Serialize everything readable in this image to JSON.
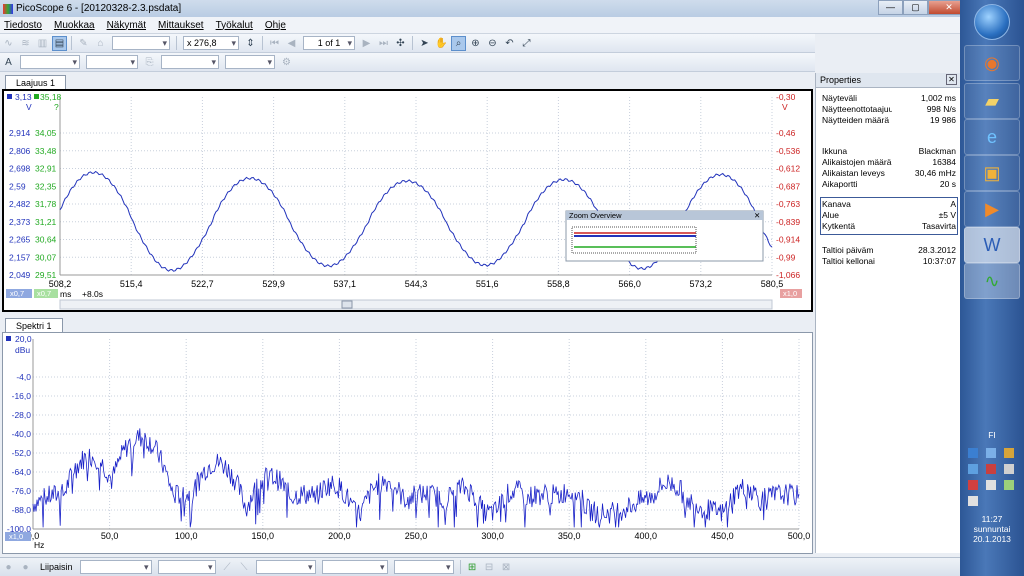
{
  "window": {
    "title": "PicoScope 6 - [20120328-2.3.psdata]"
  },
  "menu": [
    "Tiedosto",
    "Muokkaa",
    "Näkymät",
    "Mittaukset",
    "Työkalut",
    "Ohje"
  ],
  "toolbar": {
    "zoom_value": "x 276,8",
    "page_value": "1 of 1"
  },
  "scope": {
    "tab_label": "Laajuus 1",
    "channel_a_top": "3,13",
    "channel_b_top": "35,18",
    "channel_c_top": "-0,30",
    "left_unit": "V",
    "green_unit": "?",
    "right_unit": "V",
    "x_unit": "ms",
    "x_offset": "+8.0s",
    "x_zoom": "x0,7",
    "x_zoom_green": "x0,7",
    "right_zoom": "x1,0",
    "yaxis_blue": [
      "2,914",
      "2,806",
      "2,698",
      "2,59",
      "2,482",
      "2,373",
      "2,265",
      "2,157",
      "2,049"
    ],
    "yaxis_green": [
      "34,05",
      "33,48",
      "32,91",
      "32,35",
      "31,78",
      "31,21",
      "30,64",
      "30,07",
      "29,51"
    ],
    "yaxis_red": [
      "-0,46",
      "-0,536",
      "-0,612",
      "-0,687",
      "-0,763",
      "-0,839",
      "-0,914",
      "-0,99",
      "-1,066"
    ],
    "xaxis": [
      "508,2",
      "515,4",
      "522,7",
      "529,9",
      "537,1",
      "544,3",
      "551,6",
      "558,8",
      "566,0",
      "573,2",
      "580,5"
    ],
    "zoom_overview_title": "Zoom Overview",
    "waveform_color": "#2233bb"
  },
  "spectrum": {
    "tab_label": "Spektri 1",
    "top_value": "20,0",
    "unit": "dBu",
    "x_unit": "Hz",
    "x_zoom": "x1,0",
    "yaxis": [
      "-4,0",
      "-16,0",
      "-28,0",
      "-40,0",
      "-52,0",
      "-64,0",
      "-76,0",
      "-88,0",
      "-100,0"
    ],
    "xaxis": [
      "0,0",
      "50,0",
      "100,0",
      "150,0",
      "200,0",
      "250,0",
      "300,0",
      "350,0",
      "400,0",
      "450,0",
      "500,0"
    ]
  },
  "properties": {
    "title": "Properties",
    "rows1": [
      {
        "k": "Näyteväli",
        "v": "1,002 ms"
      },
      {
        "k": "Näytteenottotaajuus",
        "v": "998 N/s"
      },
      {
        "k": "Näytteiden määrä",
        "v": "19 986"
      }
    ],
    "rows2": [
      {
        "k": "Ikkuna",
        "v": "Blackman"
      },
      {
        "k": "Alikaistojen määrä",
        "v": "16384"
      },
      {
        "k": "Alikaistan leveys",
        "v": "30,46 mHz"
      },
      {
        "k": "Aikaportti",
        "v": "20 s"
      }
    ],
    "rows3": [
      {
        "k": "Kanava",
        "v": "A"
      },
      {
        "k": "Alue",
        "v": "±5 V"
      },
      {
        "k": "Kytkentä",
        "v": "Tasavirta"
      }
    ],
    "rows4": [
      {
        "k": "Taltioi päiväm",
        "v": "28.3.2012"
      },
      {
        "k": "Taltioi kellonai",
        "v": "10:37:07"
      }
    ]
  },
  "statusbar": {
    "trigger_label": "Liipaisin"
  },
  "tray": {
    "lang": "FI",
    "time": "11:27",
    "day": "sunnuntai",
    "date": "20.1.2013"
  }
}
